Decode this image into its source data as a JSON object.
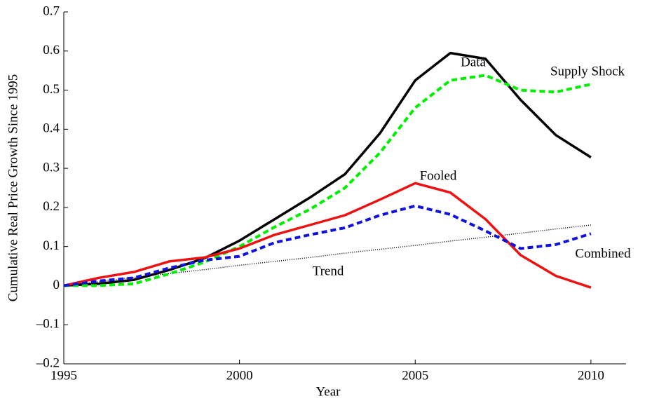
{
  "chart_data": {
    "type": "line",
    "x_label": "Year",
    "y_label": "Cumulative Real Price Growth Since 1995",
    "x": [
      1995,
      1996,
      1997,
      1998,
      1999,
      2000,
      2001,
      2002,
      2003,
      2004,
      2005,
      2006,
      2007,
      2008,
      2009,
      2010
    ],
    "xlim": [
      1995,
      2011
    ],
    "xticks": [
      1995,
      2000,
      2005,
      2010
    ],
    "ylim": [
      -0.2,
      0.7
    ],
    "yticks": [
      {
        "value": -0.2,
        "label": "–0.2"
      },
      {
        "value": -0.1,
        "label": "–0.1"
      },
      0,
      0.1,
      0.2,
      0.3,
      0.4,
      0.5,
      0.6,
      0.7
    ],
    "series": [
      {
        "name": "Data",
        "color": "#000000",
        "style": "solid",
        "values": [
          0,
          0.005,
          0.015,
          0.04,
          0.07,
          0.115,
          0.17,
          0.225,
          0.285,
          0.39,
          0.525,
          0.595,
          0.58,
          0.475,
          0.385,
          0.328
        ]
      },
      {
        "name": "Supply Shock",
        "color": "#00ee00",
        "style": "dashed",
        "values": [
          0,
          0,
          0.005,
          0.03,
          0.06,
          0.1,
          0.15,
          0.195,
          0.25,
          0.34,
          0.455,
          0.525,
          0.538,
          0.5,
          0.495,
          0.515
        ]
      },
      {
        "name": "Fooled",
        "color": "#ee1111",
        "style": "solid",
        "values": [
          0,
          0.02,
          0.035,
          0.062,
          0.072,
          0.095,
          0.13,
          0.155,
          0.18,
          0.22,
          0.262,
          0.238,
          0.17,
          0.078,
          0.025,
          -0.005
        ]
      },
      {
        "name": "Combined",
        "color": "#1111dd",
        "style": "dashed",
        "values": [
          0,
          0.012,
          0.02,
          0.045,
          0.065,
          0.075,
          0.11,
          0.13,
          0.148,
          0.18,
          0.204,
          0.182,
          0.14,
          0.095,
          0.105,
          0.133
        ]
      },
      {
        "name": "Trend",
        "color": "#000000",
        "style": "dotted",
        "values": [
          0,
          0.01,
          0.021,
          0.031,
          0.041,
          0.052,
          0.062,
          0.072,
          0.083,
          0.093,
          0.103,
          0.114,
          0.124,
          0.134,
          0.145,
          0.155
        ]
      }
    ]
  }
}
